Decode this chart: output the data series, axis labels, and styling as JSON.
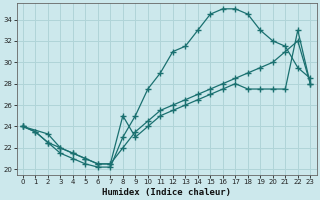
{
  "xlabel": "Humidex (Indice chaleur)",
  "bg_color": "#cce8ec",
  "line_color": "#1a7070",
  "grid_color": "#b0d4d8",
  "xlim": [
    -0.5,
    23.5
  ],
  "ylim": [
    19.5,
    35.5
  ],
  "xticks": [
    0,
    1,
    2,
    3,
    4,
    5,
    6,
    7,
    8,
    9,
    10,
    11,
    12,
    13,
    14,
    15,
    16,
    17,
    18,
    19,
    20,
    21,
    22,
    23
  ],
  "yticks": [
    20,
    22,
    24,
    26,
    28,
    30,
    32,
    34
  ],
  "curve1_x": [
    0,
    1,
    2,
    3,
    4,
    5,
    6,
    7,
    8,
    9,
    10,
    11,
    12,
    13,
    14,
    15,
    16,
    17,
    18,
    19,
    20,
    21,
    22,
    23
  ],
  "curve1_y": [
    24,
    23.5,
    22.5,
    21.5,
    21.0,
    20.5,
    20.2,
    20.2,
    23.0,
    25.0,
    27.5,
    29.0,
    31.0,
    31.5,
    33.0,
    34.5,
    35.0,
    35.0,
    34.5,
    33.0,
    32.0,
    31.5,
    29.5,
    28.5
  ],
  "curve2_x": [
    0,
    1,
    2,
    3,
    4,
    5,
    6,
    7,
    8,
    9,
    10,
    11,
    12,
    13,
    14,
    15,
    16,
    17,
    18,
    19,
    20,
    21,
    22,
    23
  ],
  "curve2_y": [
    24,
    23.5,
    22.5,
    22.0,
    21.5,
    21.0,
    20.5,
    20.5,
    22.0,
    23.5,
    24.5,
    25.5,
    26.0,
    26.5,
    27.0,
    27.5,
    28.0,
    28.5,
    29.0,
    29.5,
    30.0,
    31.0,
    32.0,
    28.0
  ],
  "curve3_x": [
    0,
    2,
    3,
    4,
    5,
    6,
    7,
    8,
    9,
    10,
    11,
    12,
    13,
    14,
    15,
    16,
    17,
    18,
    19,
    20,
    21,
    22,
    23
  ],
  "curve3_y": [
    24,
    23.3,
    22.0,
    21.5,
    21.0,
    20.5,
    20.5,
    25.0,
    23.0,
    24.0,
    25.0,
    25.5,
    26.0,
    26.5,
    27.0,
    27.5,
    28.0,
    27.5,
    27.5,
    27.5,
    27.5,
    33.0,
    28.0
  ]
}
